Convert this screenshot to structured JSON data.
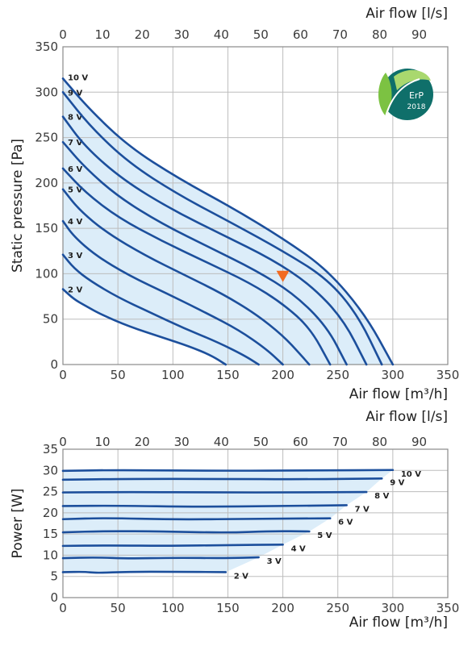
{
  "badge": {
    "line1": "ErP",
    "line2": "2018",
    "color": "#0f6f6a"
  },
  "colors": {
    "curve": "#1c4f9c",
    "fill": "#dcedf9",
    "marker": "#f26a21"
  },
  "chart_data": [
    {
      "type": "line",
      "title": "",
      "xlabel": "Air flow [m³/h]",
      "x2label": "Air flow [l/s]",
      "ylabel": "Static pressure [Pa]",
      "xlim": [
        0,
        350
      ],
      "ylim": [
        0,
        350
      ],
      "x_ticks": [
        "0",
        "50",
        "100",
        "150",
        "200",
        "250",
        "300",
        "350"
      ],
      "x2_ticks": [
        "0",
        "10",
        "20",
        "30",
        "40",
        "50",
        "60",
        "70",
        "80",
        "90"
      ],
      "y_ticks": [
        "0",
        "50",
        "100",
        "150",
        "200",
        "250",
        "300",
        "350"
      ],
      "grid": true,
      "marker": {
        "x": 200,
        "y": 97,
        "shape": "triangle-down"
      },
      "series": [
        {
          "name": "2 V",
          "points": [
            [
              0,
              83
            ],
            [
              10,
              72
            ],
            [
              20,
              65
            ],
            [
              35,
              55
            ],
            [
              60,
              42
            ],
            [
              90,
              30
            ],
            [
              115,
              20
            ],
            [
              135,
              10
            ],
            [
              148,
              0
            ]
          ]
        },
        {
          "name": "3 V",
          "points": [
            [
              0,
              121
            ],
            [
              10,
              106
            ],
            [
              25,
              92
            ],
            [
              50,
              74
            ],
            [
              80,
              57
            ],
            [
              110,
              40
            ],
            [
              140,
              25
            ],
            [
              165,
              10
            ],
            [
              178,
              0
            ]
          ]
        },
        {
          "name": "4 V",
          "points": [
            [
              0,
              158
            ],
            [
              10,
              141
            ],
            [
              30,
              120
            ],
            [
              60,
              98
            ],
            [
              95,
              78
            ],
            [
              130,
              57
            ],
            [
              160,
              38
            ],
            [
              185,
              17
            ],
            [
              200,
              0
            ]
          ]
        },
        {
          "name": "5 V",
          "points": [
            [
              0,
              193
            ],
            [
              15,
              170
            ],
            [
              40,
              145
            ],
            [
              75,
              120
            ],
            [
              110,
              99
            ],
            [
              145,
              78
            ],
            [
              175,
              56
            ],
            [
              200,
              32
            ],
            [
              216,
              11
            ],
            [
              224,
              0
            ]
          ]
        },
        {
          "name": "6 V",
          "points": [
            [
              0,
              216
            ],
            [
              20,
              190
            ],
            [
              50,
              162
            ],
            [
              90,
              136
            ],
            [
              130,
              113
            ],
            [
              170,
              90
            ],
            [
              200,
              67
            ],
            [
              225,
              40
            ],
            [
              243,
              0
            ]
          ]
        },
        {
          "name": "7 V",
          "points": [
            [
              0,
              245
            ],
            [
              20,
              217
            ],
            [
              50,
              185
            ],
            [
              90,
              155
            ],
            [
              135,
              128
            ],
            [
              175,
              104
            ],
            [
              210,
              78
            ],
            [
              240,
              42
            ],
            [
              258,
              0
            ]
          ]
        },
        {
          "name": "8 V",
          "points": [
            [
              0,
              273
            ],
            [
              20,
              240
            ],
            [
              55,
              203
            ],
            [
              100,
              170
            ],
            [
              145,
              143
            ],
            [
              190,
              116
            ],
            [
              225,
              88
            ],
            [
              255,
              50
            ],
            [
              276,
              0
            ]
          ]
        },
        {
          "name": "9 V",
          "points": [
            [
              0,
              300
            ],
            [
              25,
              262
            ],
            [
              60,
              222
            ],
            [
              105,
              187
            ],
            [
              155,
              155
            ],
            [
              200,
              125
            ],
            [
              240,
              95
            ],
            [
              268,
              55
            ],
            [
              290,
              0
            ]
          ]
        },
        {
          "name": "10 V",
          "points": [
            [
              0,
              315
            ],
            [
              25,
              280
            ],
            [
              60,
              240
            ],
            [
              105,
              205
            ],
            [
              155,
              172
            ],
            [
              200,
              139
            ],
            [
              240,
              105
            ],
            [
              275,
              55
            ],
            [
              300,
              0
            ]
          ]
        }
      ]
    },
    {
      "type": "line",
      "title": "",
      "xlabel": "Air flow [m³/h]",
      "x2label": "Air flow [l/s]",
      "ylabel": "Power [W]",
      "xlim": [
        0,
        350
      ],
      "ylim": [
        0,
        35
      ],
      "x_ticks": [
        "0",
        "50",
        "100",
        "150",
        "200",
        "250",
        "300",
        "350"
      ],
      "x2_ticks": [
        "0",
        "10",
        "20",
        "30",
        "40",
        "50",
        "60",
        "70",
        "80",
        "90"
      ],
      "y_ticks": [
        "0",
        "5",
        "10",
        "15",
        "20",
        "25",
        "30",
        "35"
      ],
      "grid": true,
      "series": [
        {
          "name": "2 V",
          "points": [
            [
              0,
              6
            ],
            [
              20,
              6.1
            ],
            [
              30,
              5.8
            ],
            [
              60,
              6.1
            ],
            [
              100,
              6.1
            ],
            [
              148,
              6
            ]
          ]
        },
        {
          "name": "3 V",
          "points": [
            [
              0,
              9.3
            ],
            [
              30,
              9.5
            ],
            [
              60,
              9.2
            ],
            [
              100,
              9.4
            ],
            [
              150,
              9.3
            ],
            [
              178,
              9.5
            ]
          ]
        },
        {
          "name": "4 V",
          "points": [
            [
              0,
              12.2
            ],
            [
              40,
              12.3
            ],
            [
              100,
              12.2
            ],
            [
              150,
              12.4
            ],
            [
              200,
              12.5
            ]
          ]
        },
        {
          "name": "5 V",
          "points": [
            [
              0,
              15.4
            ],
            [
              40,
              15.7
            ],
            [
              90,
              15.6
            ],
            [
              150,
              15.3
            ],
            [
              190,
              15.7
            ],
            [
              224,
              15.6
            ]
          ]
        },
        {
          "name": "6 V",
          "points": [
            [
              0,
              18.5
            ],
            [
              40,
              18.8
            ],
            [
              100,
              18.4
            ],
            [
              180,
              18.6
            ],
            [
              243,
              18.7
            ]
          ]
        },
        {
          "name": "7 V",
          "points": [
            [
              0,
              21.6
            ],
            [
              50,
              21.7
            ],
            [
              120,
              21.4
            ],
            [
              200,
              21.6
            ],
            [
              258,
              21.8
            ]
          ]
        },
        {
          "name": "8 V",
          "points": [
            [
              0,
              24.8
            ],
            [
              60,
              24.9
            ],
            [
              140,
              24.8
            ],
            [
              210,
              24.8
            ],
            [
              276,
              24.9
            ]
          ]
        },
        {
          "name": "9 V",
          "points": [
            [
              0,
              27.8
            ],
            [
              60,
              28
            ],
            [
              140,
              28
            ],
            [
              220,
              27.9
            ],
            [
              290,
              28.1
            ]
          ]
        },
        {
          "name": "10 V",
          "points": [
            [
              0,
              29.9
            ],
            [
              50,
              30.1
            ],
            [
              140,
              29.9
            ],
            [
              230,
              30
            ],
            [
              300,
              30.1
            ]
          ]
        }
      ]
    }
  ]
}
